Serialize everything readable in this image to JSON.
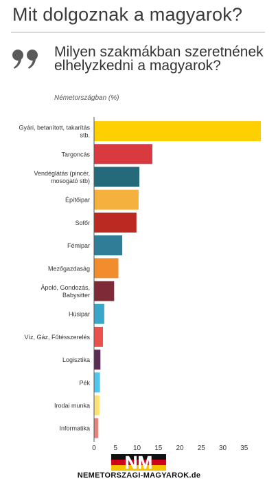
{
  "header": {
    "page_title": "Mit dolgoznak a magyarok?"
  },
  "chart_data": {
    "type": "bar",
    "orientation": "horizontal",
    "title": "Milyen szakmákban szeretnének elhelyzkedni a magyarok?",
    "subtitle": "Németországban (%)",
    "categories": [
      "Gyári, betanított, takarítás stb.",
      "Targoncás",
      "Vendéglátás (pincér, mosogató stb)",
      "Építőipar",
      "Sofőr",
      "Fémipar",
      "Mezőgazdaság",
      "Ápoló, Gondozás, Babysitter",
      "Húsipar",
      "Víz, Gáz, Fűtésszerelés",
      "Logisztika",
      "Pék",
      "Irodai munka",
      "Informatika"
    ],
    "category_lines": [
      [
        "Gyári, betanított, takarítás",
        "stb."
      ],
      [
        "Targoncás"
      ],
      [
        "Vendéglátás (pincér,",
        "mosogató stb)"
      ],
      [
        "Építőipar"
      ],
      [
        "Sofőr"
      ],
      [
        "Fémipar"
      ],
      [
        "Mezőgazdaság"
      ],
      [
        "Ápoló, Gondozás,",
        "Babysitter"
      ],
      [
        "Húsipar"
      ],
      [
        "Víz, Gáz, Fűtésszerelés"
      ],
      [
        "Logisztika"
      ],
      [
        "Pék"
      ],
      [
        "Irodai munka"
      ],
      [
        "Informatika"
      ]
    ],
    "values": [
      38.8,
      13.5,
      10.5,
      10.3,
      9.8,
      6.5,
      5.6,
      4.6,
      2.3,
      2.0,
      1.4,
      1.3,
      1.2,
      0.9
    ],
    "colors": [
      "#ffd000",
      "#d83a3f",
      "#256a7a",
      "#f4b13d",
      "#ba2a22",
      "#2f7d96",
      "#f18d2c",
      "#7f2a37",
      "#3aa6c9",
      "#e8524a",
      "#5a2d55",
      "#50c6ec",
      "#fbe17a",
      "#e8847e"
    ],
    "xlim": [
      0,
      39
    ],
    "xticks": [
      0,
      5,
      10,
      15,
      20,
      25,
      30,
      35
    ],
    "grid": false
  },
  "footer": {
    "logo_text": "NM",
    "site_name": "NEMETORSZAGI-MAGYAROK.de"
  }
}
